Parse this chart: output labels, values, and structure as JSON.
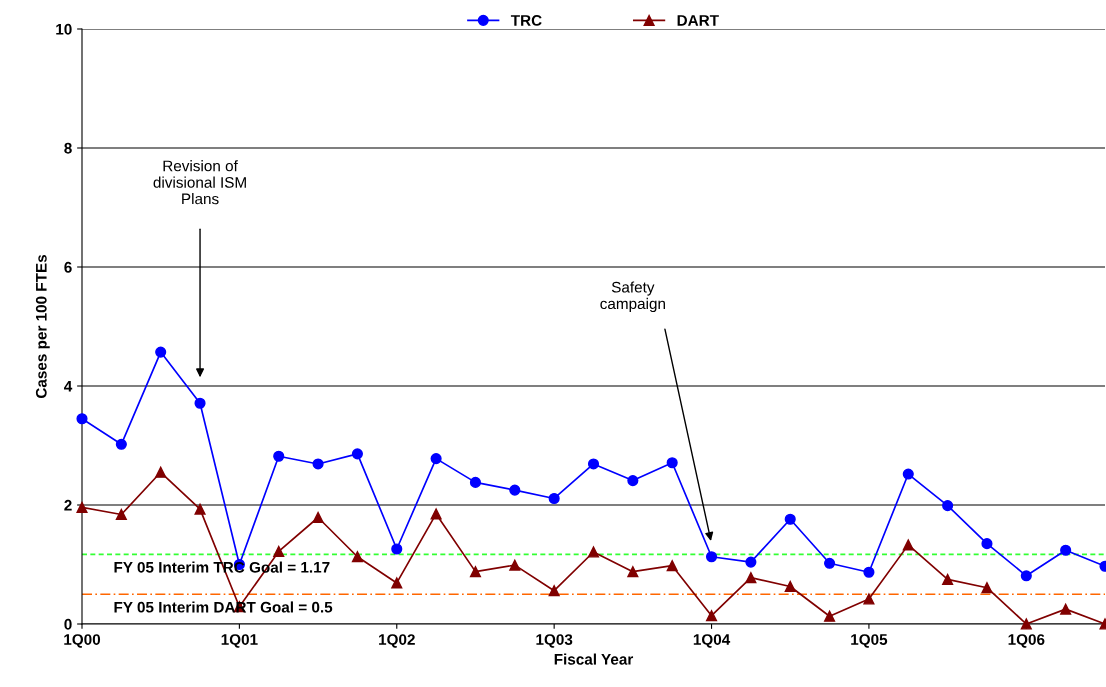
{
  "chart_data": {
    "type": "line",
    "xlabel": "Fiscal Year",
    "ylabel": "Cases per 100 FTEs",
    "categories": [
      "1Q00",
      null,
      null,
      null,
      "1Q01",
      null,
      null,
      null,
      "1Q02",
      null,
      null,
      null,
      "1Q03",
      null,
      null,
      null,
      "1Q04",
      null,
      null,
      null,
      "1Q05",
      null,
      null,
      null,
      "1Q06",
      null,
      null
    ],
    "series": [
      {
        "name": "TRC",
        "color": "#0000ff",
        "marker": "circle",
        "values": [
          3.45,
          3.02,
          4.57,
          3.71,
          1.0,
          2.82,
          2.69,
          2.86,
          1.26,
          2.78,
          2.38,
          2.25,
          2.11,
          2.69,
          2.41,
          2.71,
          1.13,
          1.04,
          1.76,
          1.02,
          0.87,
          2.52,
          1.99,
          1.35,
          0.81,
          1.24,
          0.97
        ]
      },
      {
        "name": "DART",
        "color": "#800000",
        "marker": "triangle",
        "values": [
          1.96,
          1.84,
          2.55,
          1.93,
          0.29,
          1.22,
          1.79,
          1.13,
          0.69,
          1.85,
          0.88,
          0.99,
          0.56,
          1.21,
          0.88,
          0.98,
          0.14,
          0.78,
          0.63,
          0.13,
          0.42,
          1.33,
          0.75,
          0.61,
          0.0,
          0.25,
          0.0
        ]
      }
    ],
    "ylim": [
      0,
      10
    ],
    "yticks": [
      0,
      2,
      4,
      6,
      8,
      10
    ],
    "grid": "y",
    "legend": "top",
    "ref_lines": [
      {
        "axis": "y",
        "value": 1.17,
        "label": "FY 05 Interim TRC Goal = 1.17",
        "color": "#33ff33",
        "line_style": "dashed"
      },
      {
        "axis": "y",
        "value": 0.5,
        "label": "FY 05 Interim DART Goal = 0.5",
        "color": "#ff6600",
        "line_style": "dashdot"
      }
    ],
    "annotations": [
      "Revision of\ndivisional ISM\nPlans",
      "Safety\ncampaign"
    ]
  }
}
